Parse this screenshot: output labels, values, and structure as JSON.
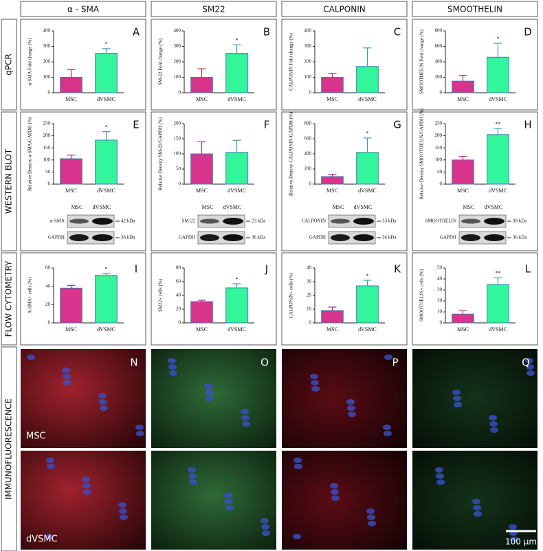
{
  "column_headers": [
    "α - SMA",
    "SM22",
    "CALPONIN",
    "SMOOTHELIN"
  ],
  "row_labels": [
    "qPCR",
    "WESTERN BLOT",
    "FLOW CYTOMETRY",
    "IMMUNOFLUORESCENCE"
  ],
  "chart_data": [
    {
      "type": "bar",
      "panel": "A",
      "ylabel": "α-SMA Fold change (%)",
      "categories": [
        "MSC",
        "dVSMC"
      ],
      "values": [
        100,
        255
      ],
      "errors": [
        50,
        30
      ],
      "colors": [
        "#d9348c",
        "#33f59c"
      ],
      "ylim": [
        0,
        400
      ],
      "yticks": [
        0,
        100,
        200,
        300,
        400
      ],
      "annotation": "*"
    },
    {
      "type": "bar",
      "panel": "B",
      "ylabel": "SM-22 Fold change (%)",
      "categories": [
        "MSC",
        "dVSMC"
      ],
      "values": [
        100,
        255
      ],
      "errors": [
        55,
        55
      ],
      "colors": [
        "#d9348c",
        "#33f59c"
      ],
      "ylim": [
        0,
        400
      ],
      "yticks": [
        0,
        100,
        200,
        300,
        400
      ],
      "annotation": "*"
    },
    {
      "type": "bar",
      "panel": "C",
      "ylabel": "CALPONIN Fold change (%)",
      "categories": [
        "MSC",
        "dVSMC"
      ],
      "values": [
        100,
        170
      ],
      "errors": [
        25,
        120
      ],
      "colors": [
        "#d9348c",
        "#33f59c"
      ],
      "ylim": [
        0,
        400
      ],
      "yticks": [
        0,
        100,
        200,
        300,
        400
      ]
    },
    {
      "type": "bar",
      "panel": "D",
      "ylabel": "SMOOTHELIN Fold change (%)",
      "categories": [
        "MSC",
        "dVSMC"
      ],
      "values": [
        150,
        460
      ],
      "errors": [
        75,
        180
      ],
      "colors": [
        "#d9348c",
        "#33f59c"
      ],
      "ylim": [
        0,
        800
      ],
      "yticks": [
        0,
        200,
        400,
        600,
        800
      ],
      "annotation": "*"
    },
    {
      "type": "bar",
      "panel": "E",
      "ylabel": "Relative Density α-SMA/GAPDH (%)",
      "categories": [
        "MSC",
        "dVSMC"
      ],
      "values": [
        105,
        182
      ],
      "errors": [
        15,
        35
      ],
      "colors": [
        "#d9348c",
        "#33f59c"
      ],
      "ylim": [
        0,
        250
      ],
      "yticks": [
        0,
        50,
        100,
        150,
        200,
        250
      ],
      "annotation": "*"
    },
    {
      "type": "bar",
      "panel": "F",
      "ylabel": "Relative Density SM-22/GAPDH (%)",
      "categories": [
        "MSC",
        "dVSMC"
      ],
      "values": [
        100,
        105
      ],
      "errors": [
        40,
        40
      ],
      "colors": [
        "#d9348c",
        "#33f59c"
      ],
      "ylim": [
        0,
        200
      ],
      "yticks": [
        0,
        50,
        100,
        150,
        200
      ]
    },
    {
      "type": "bar",
      "panel": "G",
      "ylabel": "Relative Density CALPONIN/GAPDH (%)",
      "categories": [
        "MSC",
        "dVSMC"
      ],
      "values": [
        100,
        420
      ],
      "errors": [
        30,
        190
      ],
      "colors": [
        "#d9348c",
        "#33f59c"
      ],
      "ylim": [
        0,
        800
      ],
      "yticks": [
        0,
        200,
        400,
        600,
        800
      ],
      "annotation": "*"
    },
    {
      "type": "bar",
      "panel": "H",
      "ylabel": "Relative Density SMOOTHELIN/GAPDH (%)",
      "categories": [
        "MSC",
        "dVSMC"
      ],
      "values": [
        100,
        205
      ],
      "errors": [
        15,
        25
      ],
      "colors": [
        "#d9348c",
        "#33f59c"
      ],
      "ylim": [
        0,
        250
      ],
      "yticks": [
        0,
        50,
        100,
        150,
        200,
        250
      ],
      "annotation": "**"
    },
    {
      "type": "bar",
      "panel": "I",
      "ylabel": "A-SMA+ cells (%)",
      "categories": [
        "MSC",
        "dVSMC"
      ],
      "values": [
        38,
        52
      ],
      "errors": [
        3,
        2
      ],
      "colors": [
        "#d9348c",
        "#33f59c"
      ],
      "ylim": [
        0,
        60
      ],
      "yticks": [
        0,
        20,
        40,
        60
      ],
      "annotation": "*"
    },
    {
      "type": "bar",
      "panel": "J",
      "ylabel": "SM22+ cells (%)",
      "categories": [
        "MSC",
        "dVSMC"
      ],
      "values": [
        31,
        51
      ],
      "errors": [
        2,
        6
      ],
      "colors": [
        "#d9348c",
        "#33f59c"
      ],
      "ylim": [
        0,
        80
      ],
      "yticks": [
        0,
        20,
        40,
        60,
        80
      ],
      "annotation": "*"
    },
    {
      "type": "bar",
      "panel": "K",
      "ylabel": "CALPONIN+ cells (%)",
      "categories": [
        "MSC",
        "dVSMC"
      ],
      "values": [
        9,
        27
      ],
      "errors": [
        2.5,
        4
      ],
      "colors": [
        "#d9348c",
        "#33f59c"
      ],
      "ylim": [
        0,
        40
      ],
      "yticks": [
        0,
        10,
        20,
        30,
        40
      ],
      "annotation": "*"
    },
    {
      "type": "bar",
      "panel": "L",
      "ylabel": "SMOOTHELIN+ cells (%)",
      "categories": [
        "MSC",
        "dVSMC"
      ],
      "values": [
        8,
        35
      ],
      "errors": [
        3,
        6
      ],
      "colors": [
        "#d9348c",
        "#33f59c"
      ],
      "ylim": [
        0,
        50
      ],
      "yticks": [
        0,
        10,
        20,
        30,
        40,
        50
      ],
      "annotation": "**"
    }
  ],
  "blots": [
    {
      "lanes": [
        "MSC",
        "dVSMC"
      ],
      "bands": [
        {
          "label": "α-SMA",
          "size": "42 kDa"
        },
        {
          "label": "GAPDH",
          "size": "36 kDa"
        }
      ]
    },
    {
      "lanes": [
        "MSC",
        "dVSMC"
      ],
      "bands": [
        {
          "label": "SM-22",
          "size": "23 kDa"
        },
        {
          "label": "GAPDH",
          "size": "36 kDa"
        }
      ]
    },
    {
      "lanes": [
        "MSC",
        "dVSMC"
      ],
      "bands": [
        {
          "label": "CALPONIN",
          "size": "33 kDa"
        },
        {
          "label": "GAPDH",
          "size": "36 kDa"
        }
      ]
    },
    {
      "lanes": [
        "MSC",
        "dVSMC"
      ],
      "bands": [
        {
          "label": "SMOOTHELIN",
          "size": "99 kDa"
        },
        {
          "label": "GAPDH",
          "size": "36 kDa"
        }
      ]
    }
  ],
  "immunofluorescence": {
    "panels": [
      "N",
      "O",
      "P",
      "Q"
    ],
    "rows": [
      "MSC",
      "dVSMC"
    ],
    "scale_bar": "100 µm"
  }
}
